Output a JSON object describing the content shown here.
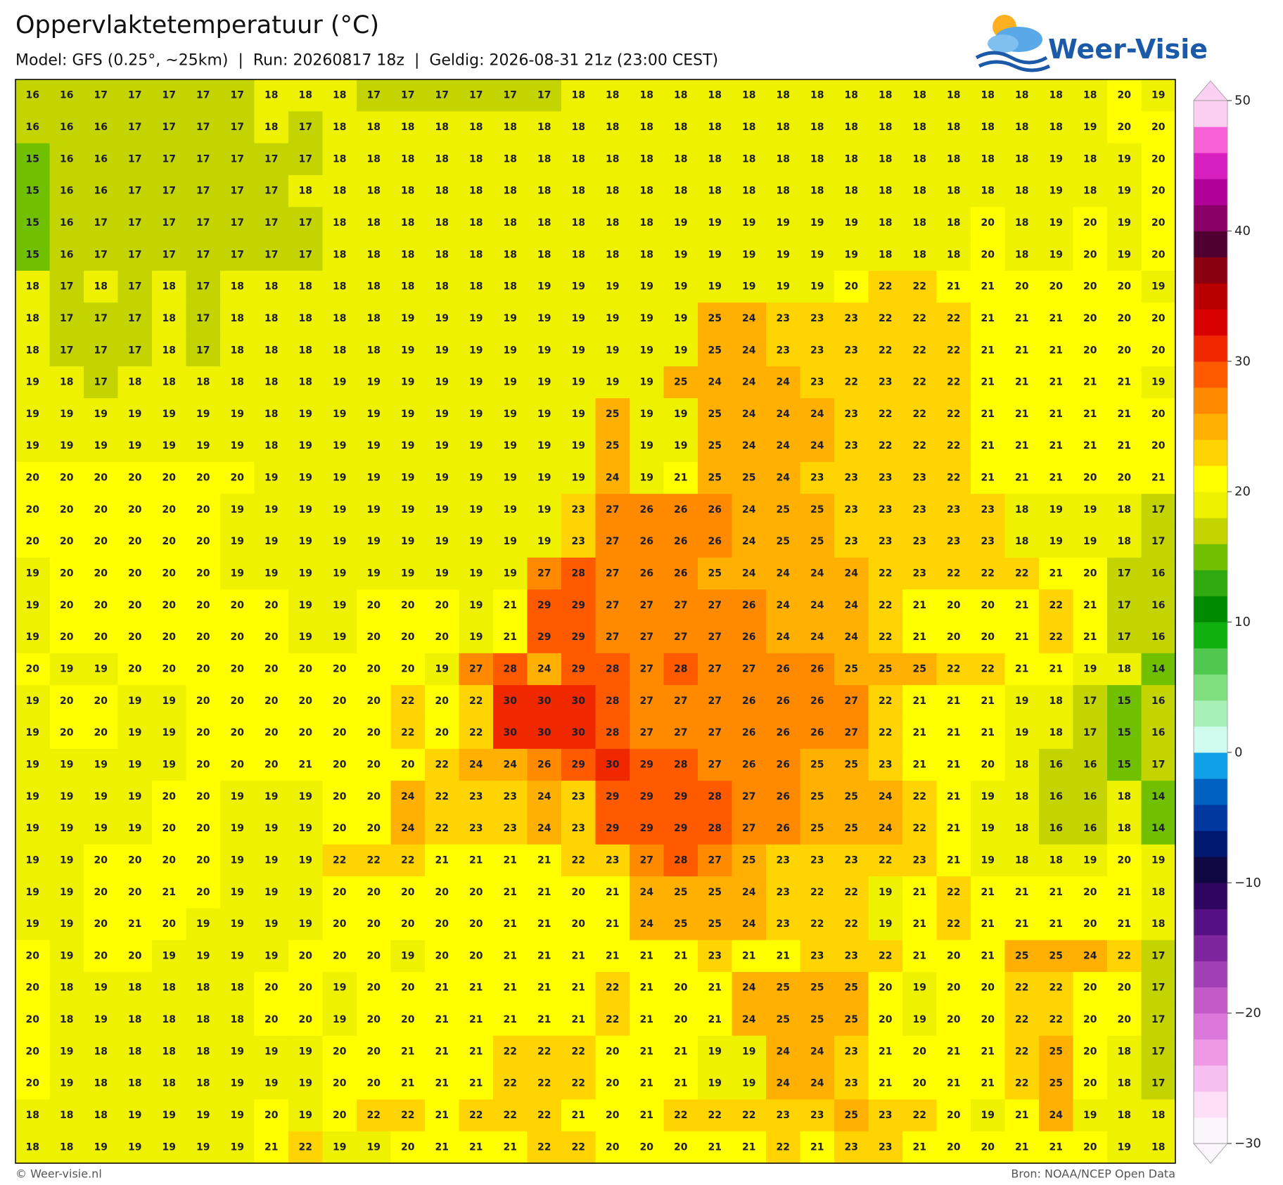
{
  "title": "Oppervlaktetemperatuur (°C)",
  "subtitle": "Model: GFS (0.25°, ~25km)  |  Run: 20260817 18z  |  Geldig: 2026-08-31 21z (23:00 CEST)",
  "logo": "Weer-Visie",
  "grid": [
    [
      16,
      16,
      17,
      17,
      17,
      17,
      17,
      18,
      18,
      18,
      17,
      17,
      17,
      17,
      17,
      17,
      18,
      18,
      18,
      18,
      18,
      18,
      18,
      18,
      18,
      18,
      18,
      18,
      18,
      18,
      18,
      18,
      20,
      19
    ],
    [
      16,
      16,
      16,
      17,
      17,
      17,
      17,
      18,
      17,
      18,
      18,
      18,
      18,
      18,
      18,
      18,
      18,
      18,
      18,
      18,
      18,
      18,
      18,
      18,
      18,
      18,
      18,
      18,
      18,
      18,
      18,
      19,
      20,
      20
    ],
    [
      15,
      16,
      16,
      17,
      17,
      17,
      17,
      17,
      17,
      18,
      18,
      18,
      18,
      18,
      18,
      18,
      18,
      18,
      18,
      18,
      18,
      18,
      18,
      18,
      18,
      18,
      18,
      18,
      18,
      18,
      19,
      18,
      19,
      20
    ],
    [
      15,
      16,
      16,
      17,
      17,
      17,
      17,
      17,
      18,
      18,
      18,
      18,
      18,
      18,
      18,
      18,
      18,
      18,
      18,
      18,
      18,
      18,
      18,
      18,
      18,
      18,
      18,
      18,
      18,
      18,
      19,
      18,
      19,
      20
    ],
    [
      15,
      16,
      17,
      17,
      17,
      17,
      17,
      17,
      17,
      18,
      18,
      18,
      18,
      18,
      18,
      18,
      18,
      18,
      18,
      19,
      19,
      19,
      19,
      19,
      19,
      18,
      18,
      18,
      20,
      18,
      19,
      20,
      19,
      20
    ],
    [
      15,
      16,
      17,
      17,
      17,
      17,
      17,
      17,
      17,
      18,
      18,
      18,
      18,
      18,
      18,
      18,
      18,
      18,
      18,
      19,
      19,
      19,
      19,
      19,
      19,
      18,
      18,
      18,
      20,
      18,
      19,
      20,
      19,
      20
    ],
    [
      18,
      17,
      18,
      17,
      18,
      17,
      18,
      18,
      18,
      18,
      18,
      18,
      18,
      18,
      18,
      19,
      19,
      19,
      19,
      19,
      19,
      19,
      19,
      19,
      20,
      22,
      22,
      21,
      21,
      20,
      20,
      20,
      20,
      19
    ],
    [
      18,
      17,
      17,
      17,
      18,
      17,
      18,
      18,
      18,
      18,
      18,
      19,
      19,
      19,
      19,
      19,
      19,
      19,
      19,
      19,
      25,
      24,
      23,
      23,
      23,
      22,
      22,
      22,
      21,
      21,
      21,
      20,
      20,
      20
    ],
    [
      18,
      17,
      17,
      17,
      18,
      17,
      18,
      18,
      18,
      18,
      18,
      19,
      19,
      19,
      19,
      19,
      19,
      19,
      19,
      19,
      25,
      24,
      23,
      23,
      23,
      22,
      22,
      22,
      21,
      21,
      21,
      20,
      20,
      20
    ],
    [
      19,
      18,
      17,
      18,
      18,
      18,
      18,
      18,
      18,
      19,
      19,
      19,
      19,
      19,
      19,
      19,
      19,
      19,
      19,
      25,
      24,
      24,
      24,
      23,
      22,
      23,
      22,
      22,
      21,
      21,
      21,
      21,
      21,
      19
    ],
    [
      19,
      19,
      19,
      19,
      19,
      19,
      19,
      18,
      19,
      19,
      19,
      19,
      19,
      19,
      19,
      19,
      19,
      25,
      19,
      19,
      25,
      24,
      24,
      24,
      23,
      22,
      22,
      22,
      21,
      21,
      21,
      21,
      21,
      20
    ],
    [
      19,
      19,
      19,
      19,
      19,
      19,
      19,
      18,
      19,
      19,
      19,
      19,
      19,
      19,
      19,
      19,
      19,
      25,
      19,
      19,
      25,
      24,
      24,
      24,
      23,
      22,
      22,
      22,
      21,
      21,
      21,
      21,
      21,
      20
    ],
    [
      20,
      20,
      20,
      20,
      20,
      20,
      20,
      19,
      19,
      19,
      19,
      19,
      19,
      19,
      19,
      19,
      19,
      24,
      19,
      21,
      25,
      25,
      24,
      23,
      23,
      23,
      23,
      22,
      21,
      21,
      21,
      20,
      20,
      21
    ],
    [
      20,
      20,
      20,
      20,
      20,
      20,
      19,
      19,
      19,
      19,
      19,
      19,
      19,
      19,
      19,
      19,
      23,
      27,
      26,
      26,
      26,
      24,
      25,
      25,
      23,
      23,
      23,
      23,
      23,
      18,
      19,
      19,
      18,
      17
    ],
    [
      20,
      20,
      20,
      20,
      20,
      20,
      19,
      19,
      19,
      19,
      19,
      19,
      19,
      19,
      19,
      19,
      23,
      27,
      26,
      26,
      26,
      24,
      25,
      25,
      23,
      23,
      23,
      23,
      23,
      18,
      19,
      19,
      18,
      17
    ],
    [
      19,
      20,
      20,
      20,
      20,
      20,
      19,
      19,
      19,
      19,
      19,
      19,
      19,
      19,
      19,
      27,
      28,
      27,
      26,
      26,
      25,
      24,
      24,
      24,
      24,
      22,
      23,
      22,
      22,
      22,
      21,
      20,
      17,
      16
    ],
    [
      19,
      20,
      20,
      20,
      20,
      20,
      20,
      20,
      19,
      19,
      20,
      20,
      20,
      19,
      21,
      29,
      29,
      27,
      27,
      27,
      27,
      26,
      24,
      24,
      24,
      22,
      21,
      20,
      20,
      21,
      22,
      21,
      17,
      16
    ],
    [
      19,
      20,
      20,
      20,
      20,
      20,
      20,
      20,
      19,
      19,
      20,
      20,
      20,
      19,
      21,
      29,
      29,
      27,
      27,
      27,
      27,
      26,
      24,
      24,
      24,
      22,
      21,
      20,
      20,
      21,
      22,
      21,
      17,
      16
    ],
    [
      20,
      19,
      19,
      20,
      20,
      20,
      20,
      20,
      20,
      20,
      20,
      20,
      19,
      27,
      28,
      24,
      29,
      28,
      27,
      28,
      27,
      27,
      26,
      26,
      25,
      25,
      25,
      22,
      22,
      21,
      21,
      19,
      18,
      14
    ],
    [
      19,
      20,
      20,
      19,
      19,
      20,
      20,
      20,
      20,
      20,
      20,
      22,
      20,
      22,
      30,
      30,
      30,
      28,
      27,
      27,
      27,
      26,
      26,
      26,
      27,
      22,
      21,
      21,
      21,
      19,
      18,
      17,
      15,
      16
    ],
    [
      19,
      20,
      20,
      19,
      19,
      20,
      20,
      20,
      20,
      20,
      20,
      22,
      20,
      22,
      30,
      30,
      30,
      28,
      27,
      27,
      27,
      26,
      26,
      26,
      27,
      22,
      21,
      21,
      21,
      19,
      18,
      17,
      15,
      16
    ],
    [
      19,
      19,
      19,
      19,
      19,
      20,
      20,
      20,
      21,
      20,
      20,
      20,
      22,
      24,
      24,
      26,
      29,
      30,
      29,
      28,
      27,
      26,
      26,
      25,
      25,
      23,
      21,
      21,
      20,
      18,
      16,
      16,
      15,
      17
    ],
    [
      19,
      19,
      19,
      19,
      20,
      20,
      19,
      19,
      19,
      20,
      20,
      24,
      22,
      23,
      23,
      24,
      23,
      29,
      29,
      29,
      28,
      27,
      26,
      25,
      25,
      24,
      22,
      21,
      19,
      18,
      16,
      16,
      18,
      14
    ],
    [
      19,
      19,
      19,
      19,
      20,
      20,
      19,
      19,
      19,
      20,
      20,
      24,
      22,
      23,
      23,
      24,
      23,
      29,
      29,
      29,
      28,
      27,
      26,
      25,
      25,
      24,
      22,
      21,
      19,
      18,
      16,
      16,
      18,
      14
    ],
    [
      19,
      19,
      20,
      20,
      20,
      20,
      19,
      19,
      19,
      22,
      22,
      22,
      21,
      21,
      21,
      21,
      22,
      23,
      27,
      28,
      27,
      25,
      23,
      23,
      23,
      22,
      23,
      21,
      19,
      18,
      18,
      19,
      20,
      19
    ],
    [
      19,
      19,
      20,
      20,
      21,
      20,
      19,
      19,
      19,
      20,
      20,
      20,
      20,
      20,
      21,
      21,
      20,
      21,
      24,
      25,
      25,
      24,
      23,
      22,
      22,
      19,
      21,
      22,
      21,
      21,
      21,
      20,
      21,
      18
    ],
    [
      19,
      19,
      20,
      21,
      20,
      19,
      19,
      19,
      19,
      20,
      20,
      20,
      20,
      20,
      21,
      21,
      20,
      21,
      24,
      25,
      25,
      24,
      23,
      22,
      22,
      19,
      21,
      22,
      21,
      21,
      21,
      20,
      21,
      18
    ],
    [
      20,
      19,
      20,
      20,
      19,
      19,
      19,
      19,
      20,
      20,
      20,
      19,
      20,
      20,
      21,
      21,
      21,
      21,
      21,
      21,
      23,
      21,
      21,
      23,
      23,
      22,
      21,
      20,
      21,
      25,
      25,
      24,
      22,
      17
    ],
    [
      20,
      18,
      19,
      18,
      18,
      18,
      18,
      20,
      20,
      19,
      20,
      20,
      21,
      21,
      21,
      21,
      21,
      22,
      21,
      20,
      21,
      24,
      25,
      25,
      25,
      20,
      19,
      20,
      20,
      22,
      22,
      20,
      20,
      17
    ],
    [
      20,
      18,
      19,
      18,
      18,
      18,
      18,
      20,
      20,
      19,
      20,
      20,
      21,
      21,
      21,
      21,
      21,
      22,
      21,
      20,
      21,
      24,
      25,
      25,
      25,
      20,
      19,
      20,
      20,
      22,
      22,
      20,
      20,
      17
    ],
    [
      20,
      19,
      18,
      18,
      18,
      18,
      19,
      19,
      19,
      20,
      20,
      21,
      21,
      21,
      22,
      22,
      22,
      20,
      21,
      21,
      19,
      19,
      24,
      24,
      23,
      21,
      20,
      21,
      21,
      22,
      25,
      20,
      18,
      17
    ],
    [
      20,
      19,
      18,
      18,
      18,
      18,
      19,
      19,
      19,
      20,
      20,
      21,
      21,
      21,
      22,
      22,
      22,
      20,
      21,
      21,
      19,
      19,
      24,
      24,
      23,
      21,
      20,
      21,
      21,
      22,
      25,
      20,
      18,
      17
    ],
    [
      18,
      18,
      18,
      19,
      19,
      19,
      19,
      20,
      19,
      20,
      22,
      22,
      21,
      22,
      22,
      22,
      21,
      20,
      21,
      22,
      22,
      22,
      23,
      23,
      25,
      23,
      22,
      20,
      19,
      21,
      24,
      19,
      18,
      18
    ],
    [
      18,
      18,
      19,
      19,
      19,
      19,
      19,
      21,
      22,
      19,
      19,
      20,
      21,
      21,
      21,
      22,
      22,
      20,
      20,
      20,
      21,
      21,
      22,
      21,
      23,
      23,
      21,
      20,
      20,
      21,
      21,
      20,
      19,
      18
    ]
  ],
  "colorbar": {
    "ylim": [
      -30,
      50
    ],
    "yticks": [
      50,
      40,
      30,
      20,
      10,
      0,
      {
        "value": -10,
        "label": "−10"
      },
      {
        "value": -20,
        "label": "−20"
      },
      {
        "value": -30,
        "label": "−30"
      }
    ],
    "colors": [
      "#fdf5fd",
      "#fde0f8",
      "#f8c0f0",
      "#ee98e6",
      "#dc78dc",
      "#c45ac8",
      "#a040b4",
      "#7e249e",
      "#561086",
      "#2e0660",
      "#100840",
      "#001870",
      "#0038a0",
      "#0060c0",
      "#10a0e8",
      "#d0fcf0",
      "#a8f0b8",
      "#80e080",
      "#50c850",
      "#10b010",
      "#008a00",
      "#30a810",
      "#70c000",
      "#c4d400",
      "#eef200",
      "#ffff00",
      "#ffd400",
      "#ffb000",
      "#ff8a00",
      "#ff5a00",
      "#f02800",
      "#d80000",
      "#b80000",
      "#8a0010",
      "#500030",
      "#8a0068",
      "#b0009a",
      "#d820c0",
      "#f860d8",
      "#fcd0f0"
    ]
  },
  "footer": {
    "left": "© Weer-visie.nl",
    "right": "Bron: NOAA/NCEP Open Data"
  }
}
